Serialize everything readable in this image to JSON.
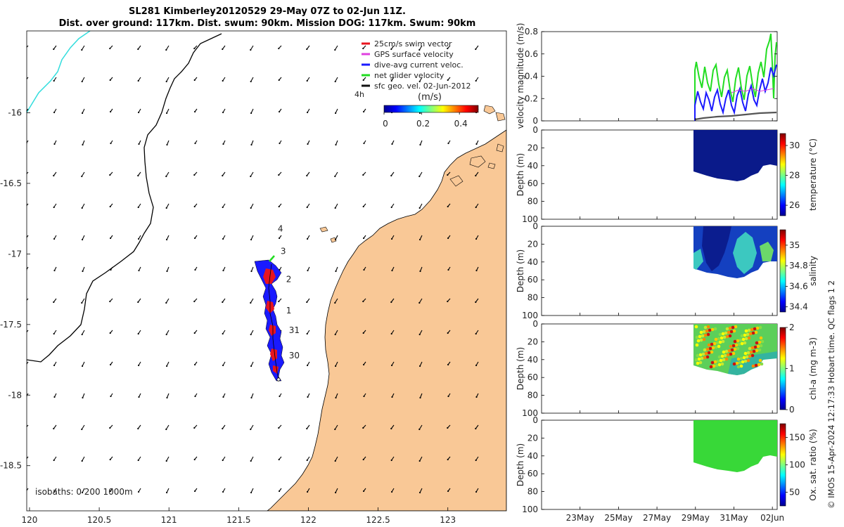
{
  "title_line1": "SL281 Kimberley20120529 29-May 07Z to 02-Jun 11Z.",
  "title_line2": "Dist. over ground: 117km. Dist. swum: 90km. Mission DOG: 117km. Swum: 90km",
  "map": {
    "x_ticks": [
      "120",
      "120.5",
      "121",
      "121.5",
      "122",
      "122.5",
      "123"
    ],
    "x_tick_values": [
      120,
      120.5,
      121,
      121.5,
      122,
      122.5,
      123
    ],
    "y_ticks": [
      "-16",
      "-16.5",
      "-17",
      "-17.5",
      "-18",
      "-18.5"
    ],
    "y_tick_values": [
      -16,
      -16.5,
      -17,
      -17.5,
      -18,
      -18.5
    ],
    "xlim": [
      119.98,
      123.42
    ],
    "ylim": [
      -18.82,
      -15.42
    ],
    "legend": [
      {
        "label": "25cm/s swim vector",
        "color": "#e8141e"
      },
      {
        "label": "GPS surface velocity",
        "color": "#e040e0"
      },
      {
        "label": "dive-avg current veloc.",
        "color": "#1a1aff"
      },
      {
        "label": "net glider velocity",
        "color": "#22dd22"
      },
      {
        "label": "sfc geo. vel. 02-Jun-2012",
        "color": "#111111"
      }
    ],
    "time_label": "4h",
    "colorbar_label": "(m/s)",
    "colorbar_ticks": [
      "0",
      "0.2",
      "0.4"
    ],
    "colorbar_tick_values": [
      0,
      0.2,
      0.4
    ],
    "colorbar_range": [
      0,
      0.5
    ],
    "day_labels": [
      {
        "text": "4",
        "lon": 121.78,
        "lat": -16.84
      },
      {
        "text": "3",
        "lon": 121.8,
        "lat": -17.0
      },
      {
        "text": "2",
        "lon": 121.84,
        "lat": -17.2
      },
      {
        "text": "1",
        "lon": 121.84,
        "lat": -17.42
      },
      {
        "text": "31",
        "lon": 121.86,
        "lat": -17.56
      },
      {
        "text": "30",
        "lon": 121.86,
        "lat": -17.74
      }
    ],
    "isobaths_label": "isobaths: 0   200  1000m",
    "land_color": "#f9c896"
  },
  "panels": {
    "depth_ylabel": "Depth (m)",
    "depth_ticks": [
      "0",
      "20",
      "40",
      "60",
      "80",
      "100"
    ],
    "depth_tick_values": [
      0,
      20,
      40,
      60,
      80,
      100
    ],
    "time_ticks": [
      "23May",
      "25May",
      "27May",
      "29May",
      "31May",
      "02Jun"
    ],
    "time_tick_values": [
      23,
      25,
      27,
      29,
      31,
      33
    ],
    "time_range": [
      21,
      33.25
    ],
    "velocity": {
      "ylabel": "velocity magnitude (m/s)",
      "ticks": [
        "0",
        "0.2",
        "0.4",
        "0.6",
        "0.8"
      ],
      "tick_values": [
        0,
        0.2,
        0.4,
        0.6,
        0.8
      ],
      "ylim": [
        0,
        0.8
      ]
    },
    "temperature": {
      "label": "temperature (°C)",
      "ticks": [
        "26",
        "28",
        "30"
      ],
      "tick_values": [
        26,
        28,
        30
      ],
      "range": [
        25.3,
        30.8
      ],
      "fill": "#0a1a8a"
    },
    "salinity": {
      "label": "salinity",
      "ticks": [
        "34.4",
        "34.6",
        "34.8",
        "35"
      ],
      "tick_values": [
        34.4,
        34.6,
        34.8,
        35
      ],
      "range": [
        34.35,
        35.15
      ],
      "fill": "#1440c0"
    },
    "chla": {
      "label": "chl-a (mg m-3)",
      "ticks": [
        "0",
        "1",
        "2"
      ],
      "tick_values": [
        0,
        1,
        2
      ],
      "range": [
        0,
        2
      ],
      "fill": "#5ccf5a"
    },
    "oxygen": {
      "label": "Ox. sat. ratio (%)",
      "ticks": [
        "50",
        "100",
        "150"
      ],
      "tick_values": [
        50,
        100,
        150
      ],
      "range": [
        25,
        175
      ],
      "fill": "#38d838"
    }
  },
  "credit": "© IMOS 15-Apr-2024 12:17:33 Hobart time. QC flags 1  2"
}
